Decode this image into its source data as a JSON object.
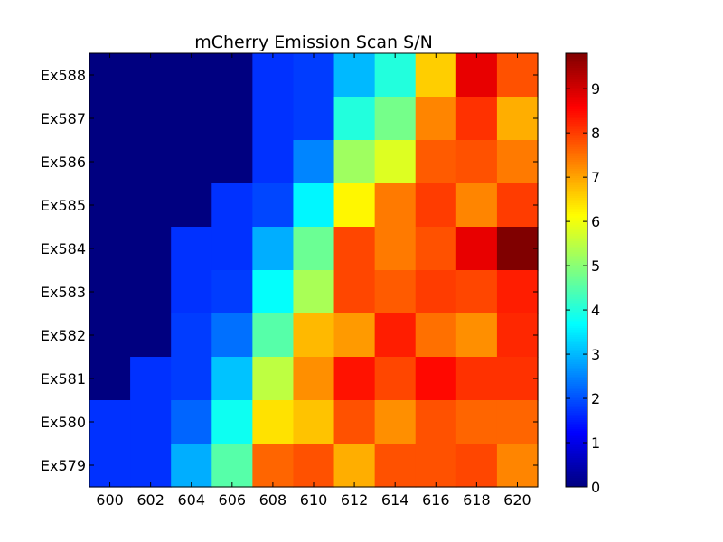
{
  "chart_data": {
    "type": "heatmap",
    "title": "mCherry Emission Scan S/N",
    "xlabel": "",
    "ylabel": "",
    "x_categories": [
      "600",
      "602",
      "604",
      "606",
      "608",
      "610",
      "612",
      "614",
      "616",
      "618",
      "620"
    ],
    "y_categories": [
      "Ex588",
      "Ex587",
      "Ex586",
      "Ex585",
      "Ex584",
      "Ex583",
      "Ex582",
      "Ex581",
      "Ex580",
      "Ex579"
    ],
    "values": [
      [
        0,
        0,
        0,
        0,
        1.7,
        1.8,
        3.0,
        4.0,
        6.6,
        8.8,
        7.8
      ],
      [
        0,
        0,
        0,
        0,
        1.7,
        1.8,
        4.0,
        4.8,
        7.3,
        8.1,
        6.9
      ],
      [
        0,
        0,
        0,
        0,
        1.7,
        2.5,
        5.2,
        5.8,
        7.7,
        7.8,
        7.4
      ],
      [
        0,
        0,
        0,
        1.7,
        1.9,
        3.6,
        6.2,
        7.4,
        8.0,
        7.3,
        8.0
      ],
      [
        0,
        0,
        1.7,
        1.7,
        2.9,
        4.7,
        7.9,
        7.4,
        7.8,
        8.8,
        9.8
      ],
      [
        0,
        0,
        1.7,
        1.8,
        3.7,
        5.3,
        7.9,
        7.7,
        8.0,
        7.9,
        8.3
      ],
      [
        0,
        0,
        1.8,
        2.3,
        4.5,
        6.8,
        7.1,
        8.3,
        7.5,
        7.2,
        8.2
      ],
      [
        0,
        1.7,
        1.8,
        3.1,
        5.5,
        7.2,
        8.4,
        7.9,
        8.5,
        8.1,
        8.1
      ],
      [
        1.7,
        1.7,
        2.2,
        3.8,
        6.4,
        6.7,
        7.8,
        7.2,
        7.8,
        7.6,
        7.6
      ],
      [
        1.7,
        1.7,
        2.9,
        4.5,
        7.6,
        7.8,
        6.9,
        7.8,
        7.8,
        7.9,
        7.3
      ]
    ],
    "colorbar": {
      "min": 0,
      "max": 9.8,
      "ticks": [
        "0",
        "1",
        "2",
        "3",
        "4",
        "5",
        "6",
        "7",
        "8",
        "9"
      ],
      "colormap": "jet"
    },
    "grid": false,
    "legend": "colorbar-right"
  }
}
